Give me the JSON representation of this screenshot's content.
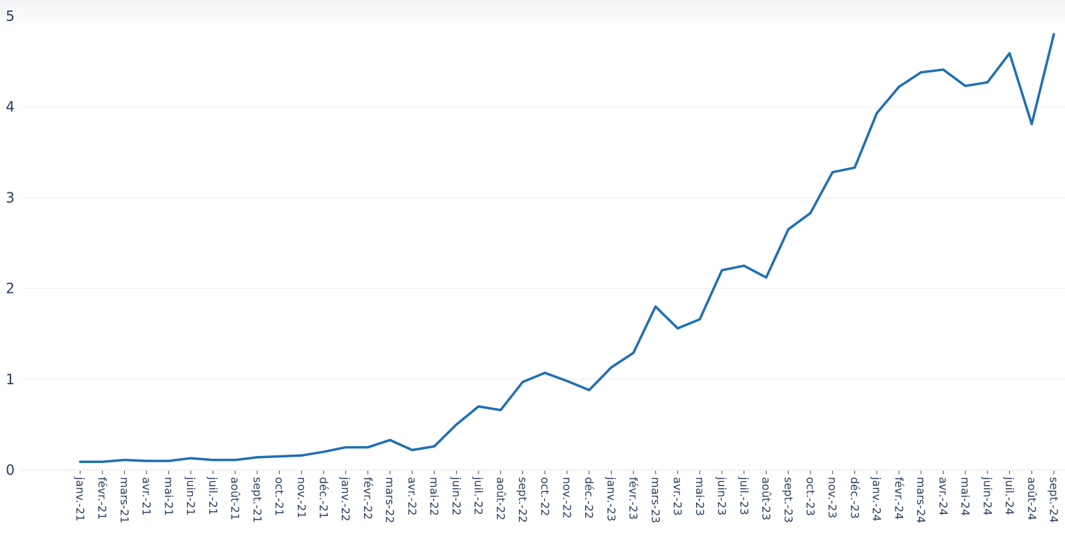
{
  "chart_data": {
    "type": "line",
    "title": "",
    "xlabel": "",
    "ylabel": "",
    "ylim": [
      0,
      5
    ],
    "yticks": [
      "0",
      "1",
      "2",
      "3",
      "4",
      "5"
    ],
    "grid": true,
    "legend": "none",
    "categories": [
      "janv.-21",
      "févr.-21",
      "mars-21",
      "avr.-21",
      "mai-21",
      "juin-21",
      "juil.-21",
      "août-21",
      "sept.-21",
      "oct.-21",
      "nov.-21",
      "déc.-21",
      "janv.-22",
      "févr.-22",
      "mars-22",
      "avr.-22",
      "mai-22",
      "juin-22",
      "juil.-22",
      "août-22",
      "sept.-22",
      "oct.-22",
      "nov.-22",
      "déc.-22",
      "janv.-23",
      "févr.-23",
      "mars-23",
      "avr.-23",
      "mai-23",
      "juin-23",
      "juil.-23",
      "août-23",
      "sept.-23",
      "oct.-23",
      "nov.-23",
      "déc.-23",
      "janv.-24",
      "févr.-24",
      "mars-24",
      "avr.-24",
      "mai-24",
      "juin-24",
      "juil.-24",
      "août-24",
      "sept.-24"
    ],
    "series": [
      {
        "color": "#1f6fb4",
        "values": [
          0.09,
          0.09,
          0.11,
          0.1,
          0.1,
          0.13,
          0.11,
          0.11,
          0.14,
          0.15,
          0.16,
          0.2,
          0.25,
          0.25,
          0.33,
          0.22,
          0.26,
          0.5,
          0.7,
          0.66,
          0.97,
          1.07,
          0.98,
          0.88,
          1.13,
          1.29,
          1.8,
          1.56,
          1.66,
          2.2,
          2.25,
          2.12,
          2.65,
          2.83,
          3.28,
          3.33,
          3.93,
          4.22,
          4.38,
          4.41,
          4.23,
          4.27,
          4.59,
          3.81,
          4.8
        ]
      }
    ]
  }
}
